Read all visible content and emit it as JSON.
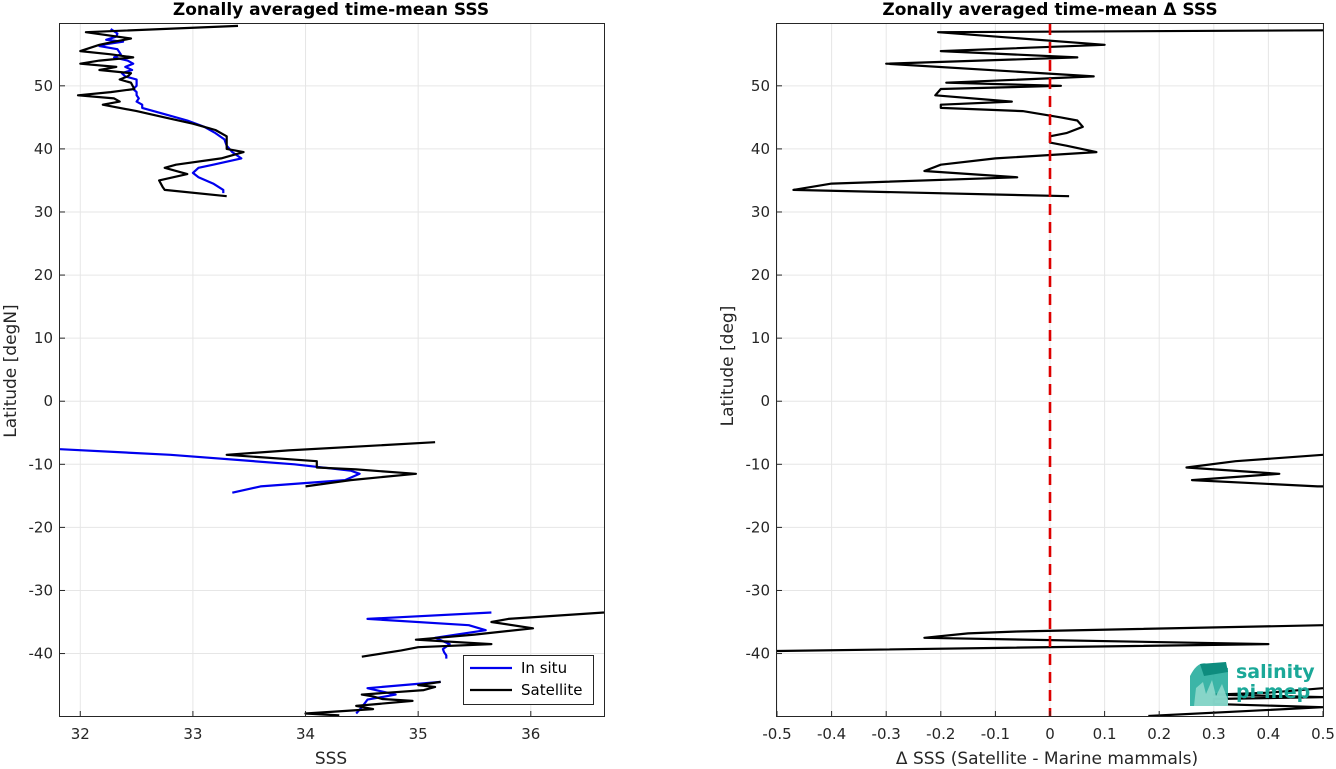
{
  "colors": {
    "in_situ": "#0000ee",
    "satellite": "#000000",
    "zero_line": "#dd0000",
    "grid": "#e6e6e6",
    "logo_teal": "#1aa898"
  },
  "logo": {
    "line1": "salinity",
    "line2": "pi-mep"
  },
  "chart_data": [
    {
      "type": "line",
      "title": "Zonally averaged time-mean SSS",
      "xlabel": "SSS",
      "ylabel": "Latitude [degN]",
      "xlim": [
        31.82,
        36.65
      ],
      "ylim": [
        -49.9,
        59.8
      ],
      "xticks": [
        32,
        33,
        34,
        35,
        36
      ],
      "yticks": [
        -40,
        -30,
        -20,
        -10,
        0,
        10,
        20,
        30,
        40,
        50
      ],
      "grid": true,
      "legend": {
        "placement": "bottom-right",
        "entries": [
          "In situ",
          "Satellite"
        ]
      },
      "series": [
        {
          "name": "In situ",
          "color_key": "in_situ",
          "segments": [
            [
              [
                32.27,
                59.0
              ],
              [
                32.33,
                58.3
              ],
              [
                32.32,
                57.8
              ],
              [
                32.23,
                57.3
              ],
              [
                32.38,
                57.0
              ],
              [
                32.23,
                56.6
              ],
              [
                32.17,
                56.3
              ],
              [
                32.33,
                55.8
              ],
              [
                32.36,
                55.0
              ],
              [
                32.3,
                54.5
              ],
              [
                32.42,
                54.0
              ],
              [
                32.47,
                53.5
              ],
              [
                32.4,
                53.0
              ],
              [
                32.46,
                52.5
              ],
              [
                32.37,
                52.0
              ],
              [
                32.4,
                51.5
              ],
              [
                32.5,
                51.0
              ],
              [
                32.5,
                50.5
              ],
              [
                32.5,
                50.0
              ],
              [
                32.47,
                49.5
              ],
              [
                32.5,
                49.0
              ],
              [
                32.5,
                48.5
              ],
              [
                32.52,
                48.0
              ],
              [
                32.5,
                47.5
              ],
              [
                32.55,
                47.0
              ],
              [
                32.55,
                46.5
              ],
              [
                32.75,
                45.5
              ],
              [
                32.95,
                44.5
              ],
              [
                33.1,
                43.5
              ],
              [
                33.2,
                42.5
              ],
              [
                33.28,
                41.5
              ],
              [
                33.3,
                40.5
              ],
              [
                33.35,
                39.5
              ],
              [
                33.43,
                38.5
              ],
              [
                33.18,
                37.5
              ],
              [
                33.05,
                37.0
              ],
              [
                33.0,
                36.2
              ],
              [
                33.05,
                35.5
              ],
              [
                33.18,
                34.5
              ],
              [
                33.27,
                33.5
              ],
              [
                33.27,
                33.0
              ]
            ],
            [
              [
                31.82,
                -7.6
              ],
              [
                32.8,
                -8.5
              ],
              [
                33.9,
                -10.0
              ],
              [
                34.4,
                -11.0
              ],
              [
                34.48,
                -11.5
              ],
              [
                34.35,
                -12.5
              ],
              [
                33.6,
                -13.5
              ],
              [
                33.35,
                -14.5
              ]
            ],
            [
              [
                35.65,
                -33.5
              ],
              [
                34.55,
                -34.5
              ],
              [
                35.45,
                -35.5
              ],
              [
                35.6,
                -36.3
              ],
              [
                35.15,
                -37.5
              ],
              [
                35.28,
                -38.5
              ],
              [
                35.22,
                -39.3
              ],
              [
                35.23,
                -39.8
              ],
              [
                35.25,
                -40.3
              ],
              [
                35.25,
                -40.8
              ]
            ],
            [
              [
                35.2,
                -44.5
              ],
              [
                34.55,
                -45.5
              ],
              [
                34.8,
                -46.5
              ],
              [
                34.55,
                -47.3
              ],
              [
                34.5,
                -48.5
              ],
              [
                34.45,
                -49.5
              ]
            ]
          ]
        },
        {
          "name": "Satellite",
          "color_key": "satellite",
          "segments": [
            [
              [
                33.4,
                59.5
              ],
              [
                32.05,
                58.5
              ],
              [
                32.45,
                57.5
              ],
              [
                32.3,
                57.0
              ],
              [
                32.17,
                56.5
              ],
              [
                32.0,
                55.5
              ],
              [
                32.27,
                55.0
              ],
              [
                32.47,
                54.5
              ],
              [
                32.17,
                54.0
              ],
              [
                32.0,
                53.5
              ],
              [
                32.32,
                53.0
              ],
              [
                32.17,
                52.5
              ],
              [
                32.45,
                52.0
              ],
              [
                32.42,
                51.5
              ],
              [
                32.35,
                51.0
              ],
              [
                32.45,
                50.5
              ],
              [
                32.48,
                49.5
              ],
              [
                32.27,
                49.0
              ],
              [
                31.98,
                48.5
              ],
              [
                32.3,
                48.0
              ],
              [
                32.35,
                47.5
              ],
              [
                32.2,
                47.0
              ],
              [
                32.5,
                46.0
              ],
              [
                32.75,
                45.0
              ],
              [
                33.0,
                44.0
              ],
              [
                33.2,
                43.0
              ],
              [
                33.3,
                42.0
              ],
              [
                33.3,
                41.0
              ],
              [
                33.3,
                40.0
              ],
              [
                33.45,
                39.5
              ],
              [
                33.25,
                38.5
              ],
              [
                32.85,
                37.5
              ],
              [
                32.75,
                37.0
              ],
              [
                32.95,
                36.0
              ],
              [
                32.7,
                35.0
              ],
              [
                32.73,
                34.0
              ],
              [
                32.75,
                33.5
              ],
              [
                33.3,
                32.5
              ]
            ],
            [
              [
                35.15,
                -6.5
              ],
              [
                33.85,
                -7.8
              ],
              [
                33.3,
                -8.5
              ],
              [
                34.1,
                -9.5
              ],
              [
                34.1,
                -10.5
              ],
              [
                34.45,
                -10.8
              ],
              [
                34.98,
                -11.5
              ],
              [
                34.4,
                -12.5
              ],
              [
                34.0,
                -13.5
              ]
            ],
            [
              [
                36.65,
                -33.5
              ],
              [
                35.8,
                -34.5
              ],
              [
                35.65,
                -35.0
              ],
              [
                36.02,
                -36.0
              ],
              [
                35.5,
                -37.0
              ],
              [
                34.98,
                -37.8
              ],
              [
                35.65,
                -38.5
              ],
              [
                35.0,
                -39.0
              ],
              [
                34.85,
                -39.5
              ],
              [
                34.5,
                -40.5
              ]
            ],
            [
              [
                35.2,
                -44.5
              ],
              [
                35.0,
                -45.0
              ],
              [
                35.15,
                -45.3
              ],
              [
                35.05,
                -45.8
              ],
              [
                34.5,
                -46.5
              ],
              [
                34.6,
                -46.8
              ],
              [
                34.68,
                -47.2
              ],
              [
                34.95,
                -47.5
              ],
              [
                34.45,
                -48.3
              ],
              [
                34.6,
                -48.8
              ],
              [
                34.0,
                -49.5
              ],
              [
                34.3,
                -49.8
              ]
            ]
          ]
        }
      ]
    },
    {
      "type": "line",
      "title": "Zonally averaged time-mean Δ SSS",
      "xlabel": "Δ SSS (Satellite - Marine mammals)",
      "ylabel": "Latitude [deg]",
      "xlim": [
        -0.5,
        0.5
      ],
      "ylim": [
        -49.9,
        59.8
      ],
      "xticks": [
        -0.5,
        -0.4,
        -0.3,
        -0.2,
        -0.1,
        0,
        0.1,
        0.2,
        0.3,
        0.4,
        0.5
      ],
      "xtick_labels": [
        "-0.5",
        "-0.4",
        "-0.3",
        "-0.2",
        "-0.1",
        "0",
        "0.1",
        "0.2",
        "0.3",
        "0.4",
        "0.5"
      ],
      "yticks": [
        -40,
        -30,
        -20,
        -10,
        0,
        10,
        20,
        30,
        40,
        50
      ],
      "grid": true,
      "reference_line": {
        "x": 0,
        "style": "dashed",
        "color_key": "zero_line"
      },
      "series": [
        {
          "color_key": "satellite",
          "segments": [
            [
              [
                0.5,
                58.8
              ],
              [
                -0.205,
                58.5
              ],
              [
                0.1,
                56.5
              ],
              [
                -0.2,
                55.5
              ],
              [
                0.05,
                54.5
              ],
              [
                -0.3,
                53.5
              ],
              [
                0.08,
                51.5
              ],
              [
                -0.19,
                50.5
              ],
              [
                0.02,
                50.0
              ],
              [
                -0.2,
                49.5
              ],
              [
                -0.21,
                48.5
              ],
              [
                -0.07,
                47.5
              ],
              [
                -0.2,
                47.0
              ],
              [
                -0.2,
                46.5
              ],
              [
                -0.05,
                46.0
              ],
              [
                0.02,
                45.0
              ],
              [
                0.05,
                44.5
              ],
              [
                0.06,
                43.5
              ],
              [
                0.03,
                42.5
              ],
              [
                0.0,
                42.0
              ],
              [
                0.0,
                41.0
              ],
              [
                0.03,
                40.5
              ],
              [
                0.085,
                39.5
              ],
              [
                -0.1,
                38.5
              ],
              [
                -0.2,
                37.5
              ],
              [
                -0.23,
                36.5
              ],
              [
                -0.06,
                35.5
              ],
              [
                -0.4,
                34.5
              ],
              [
                -0.47,
                33.5
              ],
              [
                0.035,
                32.5
              ]
            ],
            [
              [
                0.5,
                -8.5
              ],
              [
                0.34,
                -9.5
              ],
              [
                0.25,
                -10.5
              ],
              [
                0.42,
                -11.5
              ],
              [
                0.26,
                -12.5
              ],
              [
                0.49,
                -13.5
              ],
              [
                0.5,
                -13.5
              ]
            ],
            [
              [
                0.5,
                -35.5
              ],
              [
                -0.06,
                -36.5
              ],
              [
                -0.15,
                -36.8
              ],
              [
                -0.23,
                -37.5
              ],
              [
                0.4,
                -38.5
              ],
              [
                -0.5,
                -39.6
              ]
            ],
            [
              [
                0.5,
                -45.5
              ],
              [
                0.4,
                -46.2
              ],
              [
                0.3,
                -46.5
              ],
              [
                0.5,
                -46.9
              ],
              [
                0.3,
                -47.2
              ],
              [
                0.3,
                -48.0
              ],
              [
                0.5,
                -48.5
              ],
              [
                0.18,
                -49.9
              ]
            ]
          ]
        }
      ]
    }
  ]
}
